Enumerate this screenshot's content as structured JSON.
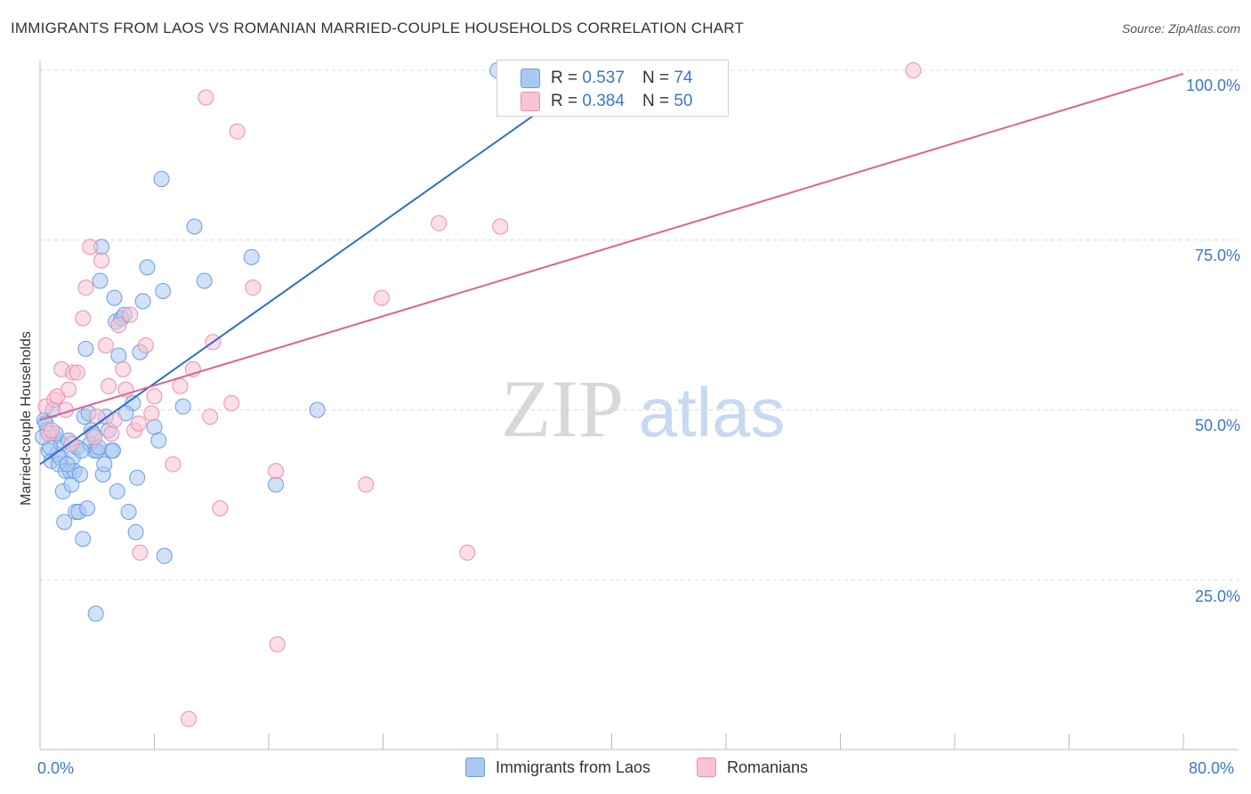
{
  "title": "IMMIGRANTS FROM LAOS VS ROMANIAN MARRIED-COUPLE HOUSEHOLDS CORRELATION CHART",
  "source": "Source: ZipAtlas.com",
  "watermark": {
    "zip": "ZIP",
    "atlas": "atlas"
  },
  "legend": {
    "rows": [
      {
        "r_label": "R =",
        "r_value": "0.537",
        "n_label": "N =",
        "n_value": "74",
        "color": "#a9c8f2",
        "edge": "#6a9fe0"
      },
      {
        "r_label": "R =",
        "r_value": "0.384",
        "n_label": "N =",
        "n_value": "50",
        "color": "#f8c3d3",
        "edge": "#ec8fae"
      }
    ]
  },
  "bottom_legend": [
    {
      "label": "Immigrants from Laos",
      "color": "#a9c8f2",
      "edge": "#6a9fe0"
    },
    {
      "label": "Romanians",
      "color": "#f8c3d3",
      "edge": "#ec8fae"
    }
  ],
  "chart_data": {
    "type": "scatter",
    "title": "IMMIGRANTS FROM LAOS VS ROMANIAN MARRIED-COUPLE HOUSEHOLDS CORRELATION CHART",
    "xlabel": "",
    "ylabel": "Married-couple Households",
    "xlim": [
      0,
      80
    ],
    "ylim": [
      0,
      100
    ],
    "x_tick_labels": [
      "0.0%",
      "80.0%"
    ],
    "y_tick_labels": [
      {
        "value": 100,
        "label": "100.0%"
      },
      {
        "value": 75,
        "label": "75.0%"
      },
      {
        "value": 50,
        "label": "50.0%"
      },
      {
        "value": 25,
        "label": "25.0%"
      }
    ],
    "grid": true,
    "series": [
      {
        "name": "Immigrants from Laos",
        "color": "#6a9fe0",
        "fill": "#a9c8f2",
        "trend": {
          "x": [
            0,
            39
          ],
          "y": [
            42.0,
            100.0
          ],
          "color": "#2f6fd0"
        },
        "points": [
          [
            0.3,
            48.5
          ],
          [
            0.5,
            47
          ],
          [
            0.6,
            44
          ],
          [
            0.8,
            42.5
          ],
          [
            0.9,
            50
          ],
          [
            1.0,
            46
          ],
          [
            1.2,
            43.5
          ],
          [
            1.3,
            42
          ],
          [
            1.5,
            45
          ],
          [
            1.6,
            38
          ],
          [
            1.7,
            33.5
          ],
          [
            1.8,
            41
          ],
          [
            2.0,
            45.5
          ],
          [
            2.1,
            41
          ],
          [
            2.2,
            39
          ],
          [
            2.3,
            43
          ],
          [
            2.4,
            41
          ],
          [
            2.5,
            35
          ],
          [
            2.6,
            44.5
          ],
          [
            2.7,
            35
          ],
          [
            2.8,
            40.5
          ],
          [
            3.0,
            31
          ],
          [
            3.1,
            49
          ],
          [
            3.2,
            59
          ],
          [
            3.3,
            35.5
          ],
          [
            3.4,
            49.5
          ],
          [
            3.5,
            45
          ],
          [
            3.6,
            47
          ],
          [
            3.8,
            44
          ],
          [
            3.9,
            20
          ],
          [
            4.0,
            44
          ],
          [
            4.2,
            69
          ],
          [
            4.3,
            74
          ],
          [
            4.4,
            40.5
          ],
          [
            4.5,
            42
          ],
          [
            4.6,
            49
          ],
          [
            4.8,
            47
          ],
          [
            5.0,
            44
          ],
          [
            5.2,
            66.5
          ],
          [
            5.3,
            63
          ],
          [
            5.4,
            38
          ],
          [
            5.5,
            58
          ],
          [
            5.7,
            63.5
          ],
          [
            5.9,
            64
          ],
          [
            6.2,
            35
          ],
          [
            6.5,
            51
          ],
          [
            6.7,
            32
          ],
          [
            6.8,
            40
          ],
          [
            7.0,
            58.5
          ],
          [
            7.2,
            66
          ],
          [
            7.5,
            71
          ],
          [
            8.0,
            47.5
          ],
          [
            8.3,
            45.5
          ],
          [
            8.5,
            84
          ],
          [
            8.6,
            67.5
          ],
          [
            8.7,
            28.5
          ],
          [
            10.0,
            50.5
          ],
          [
            10.8,
            77
          ],
          [
            11.5,
            69
          ],
          [
            14.8,
            72.5
          ],
          [
            16.5,
            39
          ],
          [
            19.4,
            50
          ],
          [
            0.4,
            48
          ],
          [
            0.7,
            44.5
          ],
          [
            1.1,
            46.5
          ],
          [
            1.4,
            43
          ],
          [
            1.9,
            42
          ],
          [
            2.9,
            44
          ],
          [
            3.7,
            46.5
          ],
          [
            4.1,
            44.5
          ],
          [
            5.1,
            44
          ],
          [
            6.0,
            49.5
          ],
          [
            0.2,
            46
          ],
          [
            32.0,
            100
          ]
        ]
      },
      {
        "name": "Romanians",
        "color": "#ec8fae",
        "fill": "#f8c3d3",
        "trend": {
          "x": [
            0,
            80
          ],
          "y": [
            48.5,
            99.5
          ],
          "color": "#e0628e"
        },
        "points": [
          [
            0.4,
            50.5
          ],
          [
            0.6,
            46.5
          ],
          [
            0.8,
            47
          ],
          [
            1.0,
            51.5
          ],
          [
            1.2,
            52
          ],
          [
            1.5,
            56
          ],
          [
            1.8,
            50
          ],
          [
            2.0,
            53
          ],
          [
            2.3,
            55.5
          ],
          [
            2.6,
            55.5
          ],
          [
            3.0,
            63.5
          ],
          [
            3.2,
            68
          ],
          [
            3.5,
            74
          ],
          [
            3.8,
            46
          ],
          [
            4.0,
            49
          ],
          [
            4.3,
            72
          ],
          [
            4.6,
            59.5
          ],
          [
            4.8,
            53.5
          ],
          [
            5.0,
            46.5
          ],
          [
            5.2,
            48.5
          ],
          [
            5.5,
            62.5
          ],
          [
            5.8,
            56
          ],
          [
            6.0,
            53
          ],
          [
            6.3,
            64
          ],
          [
            6.6,
            47
          ],
          [
            6.9,
            48
          ],
          [
            7.0,
            29
          ],
          [
            7.4,
            59.5
          ],
          [
            7.8,
            49.5
          ],
          [
            8.0,
            52
          ],
          [
            9.3,
            42
          ],
          [
            9.8,
            53.5
          ],
          [
            10.4,
            4.5
          ],
          [
            10.7,
            56
          ],
          [
            11.6,
            96
          ],
          [
            11.9,
            49
          ],
          [
            12.1,
            60
          ],
          [
            12.6,
            35.5
          ],
          [
            13.4,
            51
          ],
          [
            13.8,
            91
          ],
          [
            14.9,
            68
          ],
          [
            16.5,
            41
          ],
          [
            16.6,
            15.5
          ],
          [
            22.8,
            39
          ],
          [
            23.9,
            66.5
          ],
          [
            27.9,
            77.5
          ],
          [
            29.9,
            29
          ],
          [
            32.2,
            77
          ],
          [
            61.1,
            100
          ],
          [
            2.2,
            45
          ]
        ]
      }
    ]
  }
}
